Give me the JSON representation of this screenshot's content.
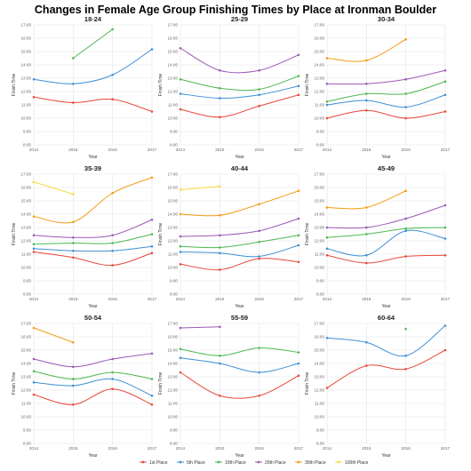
{
  "title": "Changes in Female Age Group Finishing Times by Place at Ironman Boulder",
  "colors": {
    "1st Place": "#e8483b",
    "5th Place": "#3d8fd6",
    "10th Place": "#4cb850",
    "20th Place": "#9b59b6",
    "30th Place": "#f39c12",
    "100th Place": "#f7dc3b"
  },
  "chart_data": [
    {
      "type": "line",
      "title": "18-24",
      "xlabel": "Year",
      "ylabel": "Finish Time",
      "x": [
        2014,
        2015,
        2016,
        2017
      ],
      "ylim": [
        "8:00",
        "17:00"
      ],
      "yticks": [
        "8:00",
        "9:00",
        "10:00",
        "11:00",
        "12:00",
        "13:00",
        "14:00",
        "15:00",
        "16:00",
        "17:00"
      ],
      "series": [
        {
          "name": "1st Place",
          "values": [
            "11:35",
            "11:10",
            "11:25",
            "10:30"
          ]
        },
        {
          "name": "5th Place",
          "values": [
            "12:55",
            "12:35",
            "13:15",
            "15:10"
          ]
        },
        {
          "name": "10th Place",
          "values": [
            null,
            "14:30",
            "16:40",
            null
          ]
        }
      ]
    },
    {
      "type": "line",
      "title": "25-29",
      "xlabel": "Year",
      "ylabel": "Finish Time",
      "x": [
        2014,
        2015,
        2016,
        2017
      ],
      "ylim": [
        "8:00",
        "17:00"
      ],
      "yticks": [
        "8:00",
        "9:00",
        "10:00",
        "11:00",
        "12:00",
        "13:00",
        "14:00",
        "15:00",
        "16:00",
        "17:00"
      ],
      "series": [
        {
          "name": "1st Place",
          "values": [
            "10:40",
            "10:05",
            "10:55",
            "11:45"
          ]
        },
        {
          "name": "5th Place",
          "values": [
            "11:50",
            "11:30",
            "11:45",
            "12:25"
          ]
        },
        {
          "name": "10th Place",
          "values": [
            "12:55",
            "12:15",
            "12:10",
            "13:10"
          ]
        },
        {
          "name": "20th Place",
          "values": [
            "15:15",
            "13:35",
            "13:35",
            "14:45"
          ]
        }
      ]
    },
    {
      "type": "line",
      "title": "30-34",
      "xlabel": "Year",
      "ylabel": "Finish Time",
      "x": [
        2014,
        2015,
        2016,
        2017
      ],
      "ylim": [
        "8:00",
        "17:00"
      ],
      "yticks": [
        "8:00",
        "9:00",
        "10:00",
        "11:00",
        "12:00",
        "13:00",
        "14:00",
        "15:00",
        "16:00",
        "17:00"
      ],
      "series": [
        {
          "name": "1st Place",
          "values": [
            "10:00",
            "10:35",
            "10:00",
            "10:30"
          ]
        },
        {
          "name": "5th Place",
          "values": [
            "11:00",
            "11:20",
            "10:50",
            "11:45"
          ]
        },
        {
          "name": "10th Place",
          "values": [
            "11:15",
            "11:50",
            "11:50",
            "12:45"
          ]
        },
        {
          "name": "20th Place",
          "values": [
            "12:35",
            "12:35",
            "12:55",
            "13:35"
          ]
        },
        {
          "name": "30th Place",
          "values": [
            "14:30",
            "14:20",
            "15:55",
            null
          ]
        }
      ]
    },
    {
      "type": "line",
      "title": "35-39",
      "xlabel": "Year",
      "ylabel": "Finish Time",
      "x": [
        2014,
        2015,
        2016,
        2017
      ],
      "ylim": [
        "8:00",
        "17:00"
      ],
      "yticks": [
        "8:00",
        "9:00",
        "10:00",
        "11:00",
        "12:00",
        "13:00",
        "14:00",
        "15:00",
        "16:00",
        "17:00"
      ],
      "series": [
        {
          "name": "1st Place",
          "values": [
            "11:10",
            "10:45",
            "10:10",
            "11:05"
          ]
        },
        {
          "name": "5th Place",
          "values": [
            "11:25",
            "11:15",
            "11:15",
            "11:35"
          ]
        },
        {
          "name": "10th Place",
          "values": [
            "11:45",
            "11:50",
            "11:50",
            "12:30"
          ]
        },
        {
          "name": "20th Place",
          "values": [
            "12:25",
            "12:15",
            "12:25",
            "13:35"
          ]
        },
        {
          "name": "30th Place",
          "values": [
            "13:50",
            "13:25",
            "15:35",
            "16:45"
          ]
        },
        {
          "name": "100th Place",
          "values": [
            "16:25",
            "15:30",
            null,
            null
          ]
        }
      ]
    },
    {
      "type": "line",
      "title": "40-44",
      "xlabel": "Year",
      "ylabel": "Finish Time",
      "x": [
        2014,
        2015,
        2016,
        2017
      ],
      "ylim": [
        "8:00",
        "17:00"
      ],
      "yticks": [
        "8:00",
        "9:00",
        "10:00",
        "11:00",
        "12:00",
        "13:00",
        "14:00",
        "15:00",
        "16:00",
        "17:00"
      ],
      "series": [
        {
          "name": "1st Place",
          "values": [
            "10:15",
            "9:50",
            "10:40",
            "10:25"
          ]
        },
        {
          "name": "5th Place",
          "values": [
            "11:10",
            "11:05",
            "10:50",
            "11:40"
          ]
        },
        {
          "name": "10th Place",
          "values": [
            "11:35",
            "11:30",
            "11:55",
            "12:25"
          ]
        },
        {
          "name": "20th Place",
          "values": [
            "12:20",
            "12:25",
            "12:45",
            "13:40"
          ]
        },
        {
          "name": "30th Place",
          "values": [
            "14:00",
            "13:55",
            "14:45",
            "15:45"
          ]
        },
        {
          "name": "100th Place",
          "values": [
            "15:50",
            "16:05",
            null,
            null
          ]
        }
      ]
    },
    {
      "type": "line",
      "title": "45-49",
      "xlabel": "Year",
      "ylabel": "Finish Time",
      "x": [
        2014,
        2015,
        2016,
        2017
      ],
      "ylim": [
        "8:00",
        "17:00"
      ],
      "yticks": [
        "8:00",
        "9:00",
        "10:00",
        "11:00",
        "12:00",
        "13:00",
        "14:00",
        "15:00",
        "16:00",
        "17:00"
      ],
      "series": [
        {
          "name": "1st Place",
          "values": [
            "10:55",
            "10:20",
            "10:50",
            "10:55"
          ]
        },
        {
          "name": "5th Place",
          "values": [
            "11:25",
            "10:55",
            "12:45",
            "12:10"
          ]
        },
        {
          "name": "10th Place",
          "values": [
            "12:15",
            "12:30",
            "12:55",
            "13:00"
          ]
        },
        {
          "name": "20th Place",
          "values": [
            "13:00",
            "13:00",
            "13:40",
            "14:40"
          ]
        },
        {
          "name": "30th Place",
          "values": [
            "14:30",
            "14:30",
            "15:45",
            null
          ]
        }
      ]
    },
    {
      "type": "line",
      "title": "50-54",
      "xlabel": "Year",
      "ylabel": "Finish Time",
      "x": [
        2014,
        2015,
        2016,
        2017
      ],
      "ylim": [
        "8:00",
        "17:00"
      ],
      "yticks": [
        "8:00",
        "9:00",
        "10:00",
        "11:00",
        "12:00",
        "13:00",
        "14:00",
        "15:00",
        "16:00",
        "17:00"
      ],
      "series": [
        {
          "name": "1st Place",
          "values": [
            "11:40",
            "10:55",
            "12:05",
            "10:55"
          ]
        },
        {
          "name": "5th Place",
          "values": [
            "12:35",
            "12:20",
            "12:50",
            "11:35"
          ]
        },
        {
          "name": "10th Place",
          "values": [
            "13:25",
            "12:50",
            "13:20",
            "12:50"
          ]
        },
        {
          "name": "20th Place",
          "values": [
            "14:20",
            "13:45",
            "14:20",
            "14:45"
          ]
        },
        {
          "name": "30th Place",
          "values": [
            "16:40",
            "15:35",
            null,
            null
          ]
        }
      ]
    },
    {
      "type": "line",
      "title": "55-59",
      "xlabel": "Year",
      "ylabel": "Finish Time",
      "x": [
        2014,
        2015,
        2016,
        2017
      ],
      "ylim": [
        "8:00",
        "17:00"
      ],
      "yticks": [
        "8:00",
        "9:00",
        "10:00",
        "11:00",
        "12:00",
        "13:00",
        "14:00",
        "15:00",
        "16:00",
        "17:00"
      ],
      "series": [
        {
          "name": "1st Place",
          "values": [
            "13:20",
            "11:35",
            "11:35",
            "13:05"
          ]
        },
        {
          "name": "5th Place",
          "values": [
            "14:25",
            "14:00",
            "13:20",
            "14:00"
          ]
        },
        {
          "name": "10th Place",
          "values": [
            "15:05",
            "14:35",
            "15:10",
            "14:50"
          ]
        },
        {
          "name": "20th Place",
          "values": [
            "16:40",
            "16:45",
            null,
            null
          ]
        }
      ]
    },
    {
      "type": "line",
      "title": "60-64",
      "xlabel": "Year",
      "ylabel": "Finish Time",
      "x": [
        2014,
        2015,
        2016,
        2017
      ],
      "ylim": [
        "8:00",
        "17:00"
      ],
      "yticks": [
        "8:00",
        "9:00",
        "10:00",
        "11:00",
        "12:00",
        "13:00",
        "14:00",
        "15:00",
        "16:00",
        "17:00"
      ],
      "series": [
        {
          "name": "1st Place",
          "values": [
            "12:10",
            "13:50",
            "13:35",
            "15:00"
          ]
        },
        {
          "name": "5th Place",
          "values": [
            "15:55",
            "15:35",
            "14:35",
            "16:50"
          ]
        },
        {
          "name": "10th Place",
          "values": [
            null,
            null,
            "16:35",
            null
          ]
        }
      ]
    }
  ],
  "legend": {
    "position": "bottom",
    "items": [
      "1st Place",
      "5th Place",
      "10th Place",
      "20th Place",
      "30th Place",
      "100th Place"
    ]
  }
}
